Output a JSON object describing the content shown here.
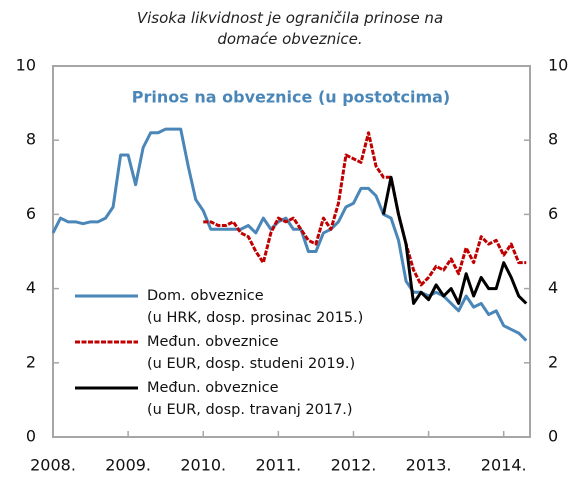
{
  "chart_data": {
    "type": "line",
    "title": "Visoka likvidnost je ograničila prinose na domaće obveznice.",
    "subtitle": "Prinos na obveznice (u postotcima)",
    "x": [
      2008.0,
      2008.1,
      2008.2,
      2008.3,
      2008.4,
      2008.5,
      2008.6,
      2008.7,
      2008.8,
      2008.9,
      2009.0,
      2009.1,
      2009.2,
      2009.3,
      2009.4,
      2009.5,
      2009.6,
      2009.7,
      2009.8,
      2009.9,
      2010.0,
      2010.1,
      2010.2,
      2010.3,
      2010.4,
      2010.5,
      2010.6,
      2010.7,
      2010.8,
      2010.9,
      2011.0,
      2011.1,
      2011.2,
      2011.3,
      2011.4,
      2011.5,
      2011.6,
      2011.7,
      2011.8,
      2011.9,
      2012.0,
      2012.1,
      2012.2,
      2012.3,
      2012.4,
      2012.5,
      2012.6,
      2012.7,
      2012.8,
      2012.9,
      2013.0,
      2013.1,
      2013.2,
      2013.3,
      2013.4,
      2013.5,
      2013.6,
      2013.7,
      2013.8,
      2013.9,
      2014.0,
      2014.1,
      2014.2,
      2014.3
    ],
    "series": [
      {
        "name": "Dom. obveznice\n(u HRK, dosp. prosinac 2015.)",
        "color": "#4a86b8",
        "style": "solid",
        "values": [
          5.5,
          5.9,
          5.8,
          5.8,
          5.75,
          5.8,
          5.8,
          5.9,
          6.2,
          7.6,
          7.6,
          6.8,
          7.8,
          8.2,
          8.2,
          8.3,
          8.3,
          8.3,
          7.3,
          6.4,
          6.1,
          5.6,
          5.6,
          5.6,
          5.6,
          5.6,
          5.7,
          5.5,
          5.9,
          5.6,
          5.8,
          5.9,
          5.6,
          5.6,
          5.0,
          5.0,
          5.5,
          5.6,
          5.8,
          6.2,
          6.3,
          6.7,
          6.7,
          6.5,
          6.0,
          5.9,
          5.3,
          4.2,
          3.9,
          3.9,
          3.8,
          3.9,
          3.8,
          3.6,
          3.4,
          3.8,
          3.5,
          3.6,
          3.3,
          3.4,
          3.0,
          2.9,
          2.8,
          2.6
        ]
      },
      {
        "name": "Međun. obveznice\n(u EUR, dosp. studeni 2019.)",
        "color": "#c00000",
        "style": "dashed",
        "values": [
          null,
          null,
          null,
          null,
          null,
          null,
          null,
          null,
          null,
          null,
          null,
          null,
          null,
          null,
          null,
          null,
          null,
          null,
          null,
          null,
          5.8,
          5.8,
          5.7,
          5.7,
          5.8,
          5.5,
          5.4,
          5.0,
          4.7,
          5.5,
          5.9,
          5.8,
          5.9,
          5.6,
          5.3,
          5.2,
          5.9,
          5.6,
          6.3,
          7.6,
          7.5,
          7.4,
          8.2,
          7.3,
          7.0,
          7.0,
          6.0,
          5.2,
          4.5,
          4.1,
          4.3,
          4.6,
          4.5,
          4.8,
          4.4,
          5.1,
          4.7,
          5.4,
          5.2,
          5.3,
          4.9,
          5.2,
          4.7,
          4.7
        ]
      },
      {
        "name": "Međun. obveznice\n(u EUR, dosp. travanj 2017.)",
        "color": "#000000",
        "style": "solid",
        "values": [
          null,
          null,
          null,
          null,
          null,
          null,
          null,
          null,
          null,
          null,
          null,
          null,
          null,
          null,
          null,
          null,
          null,
          null,
          null,
          null,
          null,
          null,
          null,
          null,
          null,
          null,
          null,
          null,
          null,
          null,
          null,
          null,
          null,
          null,
          null,
          null,
          null,
          null,
          null,
          null,
          null,
          null,
          null,
          null,
          6.0,
          7.0,
          6.0,
          5.2,
          3.6,
          3.9,
          3.7,
          4.1,
          3.8,
          4.0,
          3.6,
          4.4,
          3.8,
          4.3,
          4.0,
          4.0,
          4.7,
          4.3,
          3.8,
          3.6
        ]
      }
    ],
    "xlim": [
      2008,
      2014.35
    ],
    "xticks": [
      {
        "value": 2008,
        "label": "2008."
      },
      {
        "value": 2009,
        "label": "2009."
      },
      {
        "value": 2010,
        "label": "2010."
      },
      {
        "value": 2011,
        "label": "2011."
      },
      {
        "value": 2012,
        "label": "2012."
      },
      {
        "value": 2013,
        "label": "2013."
      },
      {
        "value": 2014,
        "label": "2014."
      }
    ],
    "ylim": [
      0,
      10
    ],
    "yticks": [
      0,
      2,
      4,
      6,
      8,
      10
    ],
    "y2lim": [
      0,
      10
    ],
    "y2ticks": [
      0,
      2,
      4,
      6,
      8,
      10
    ],
    "legend": "lower left",
    "grid": false
  }
}
